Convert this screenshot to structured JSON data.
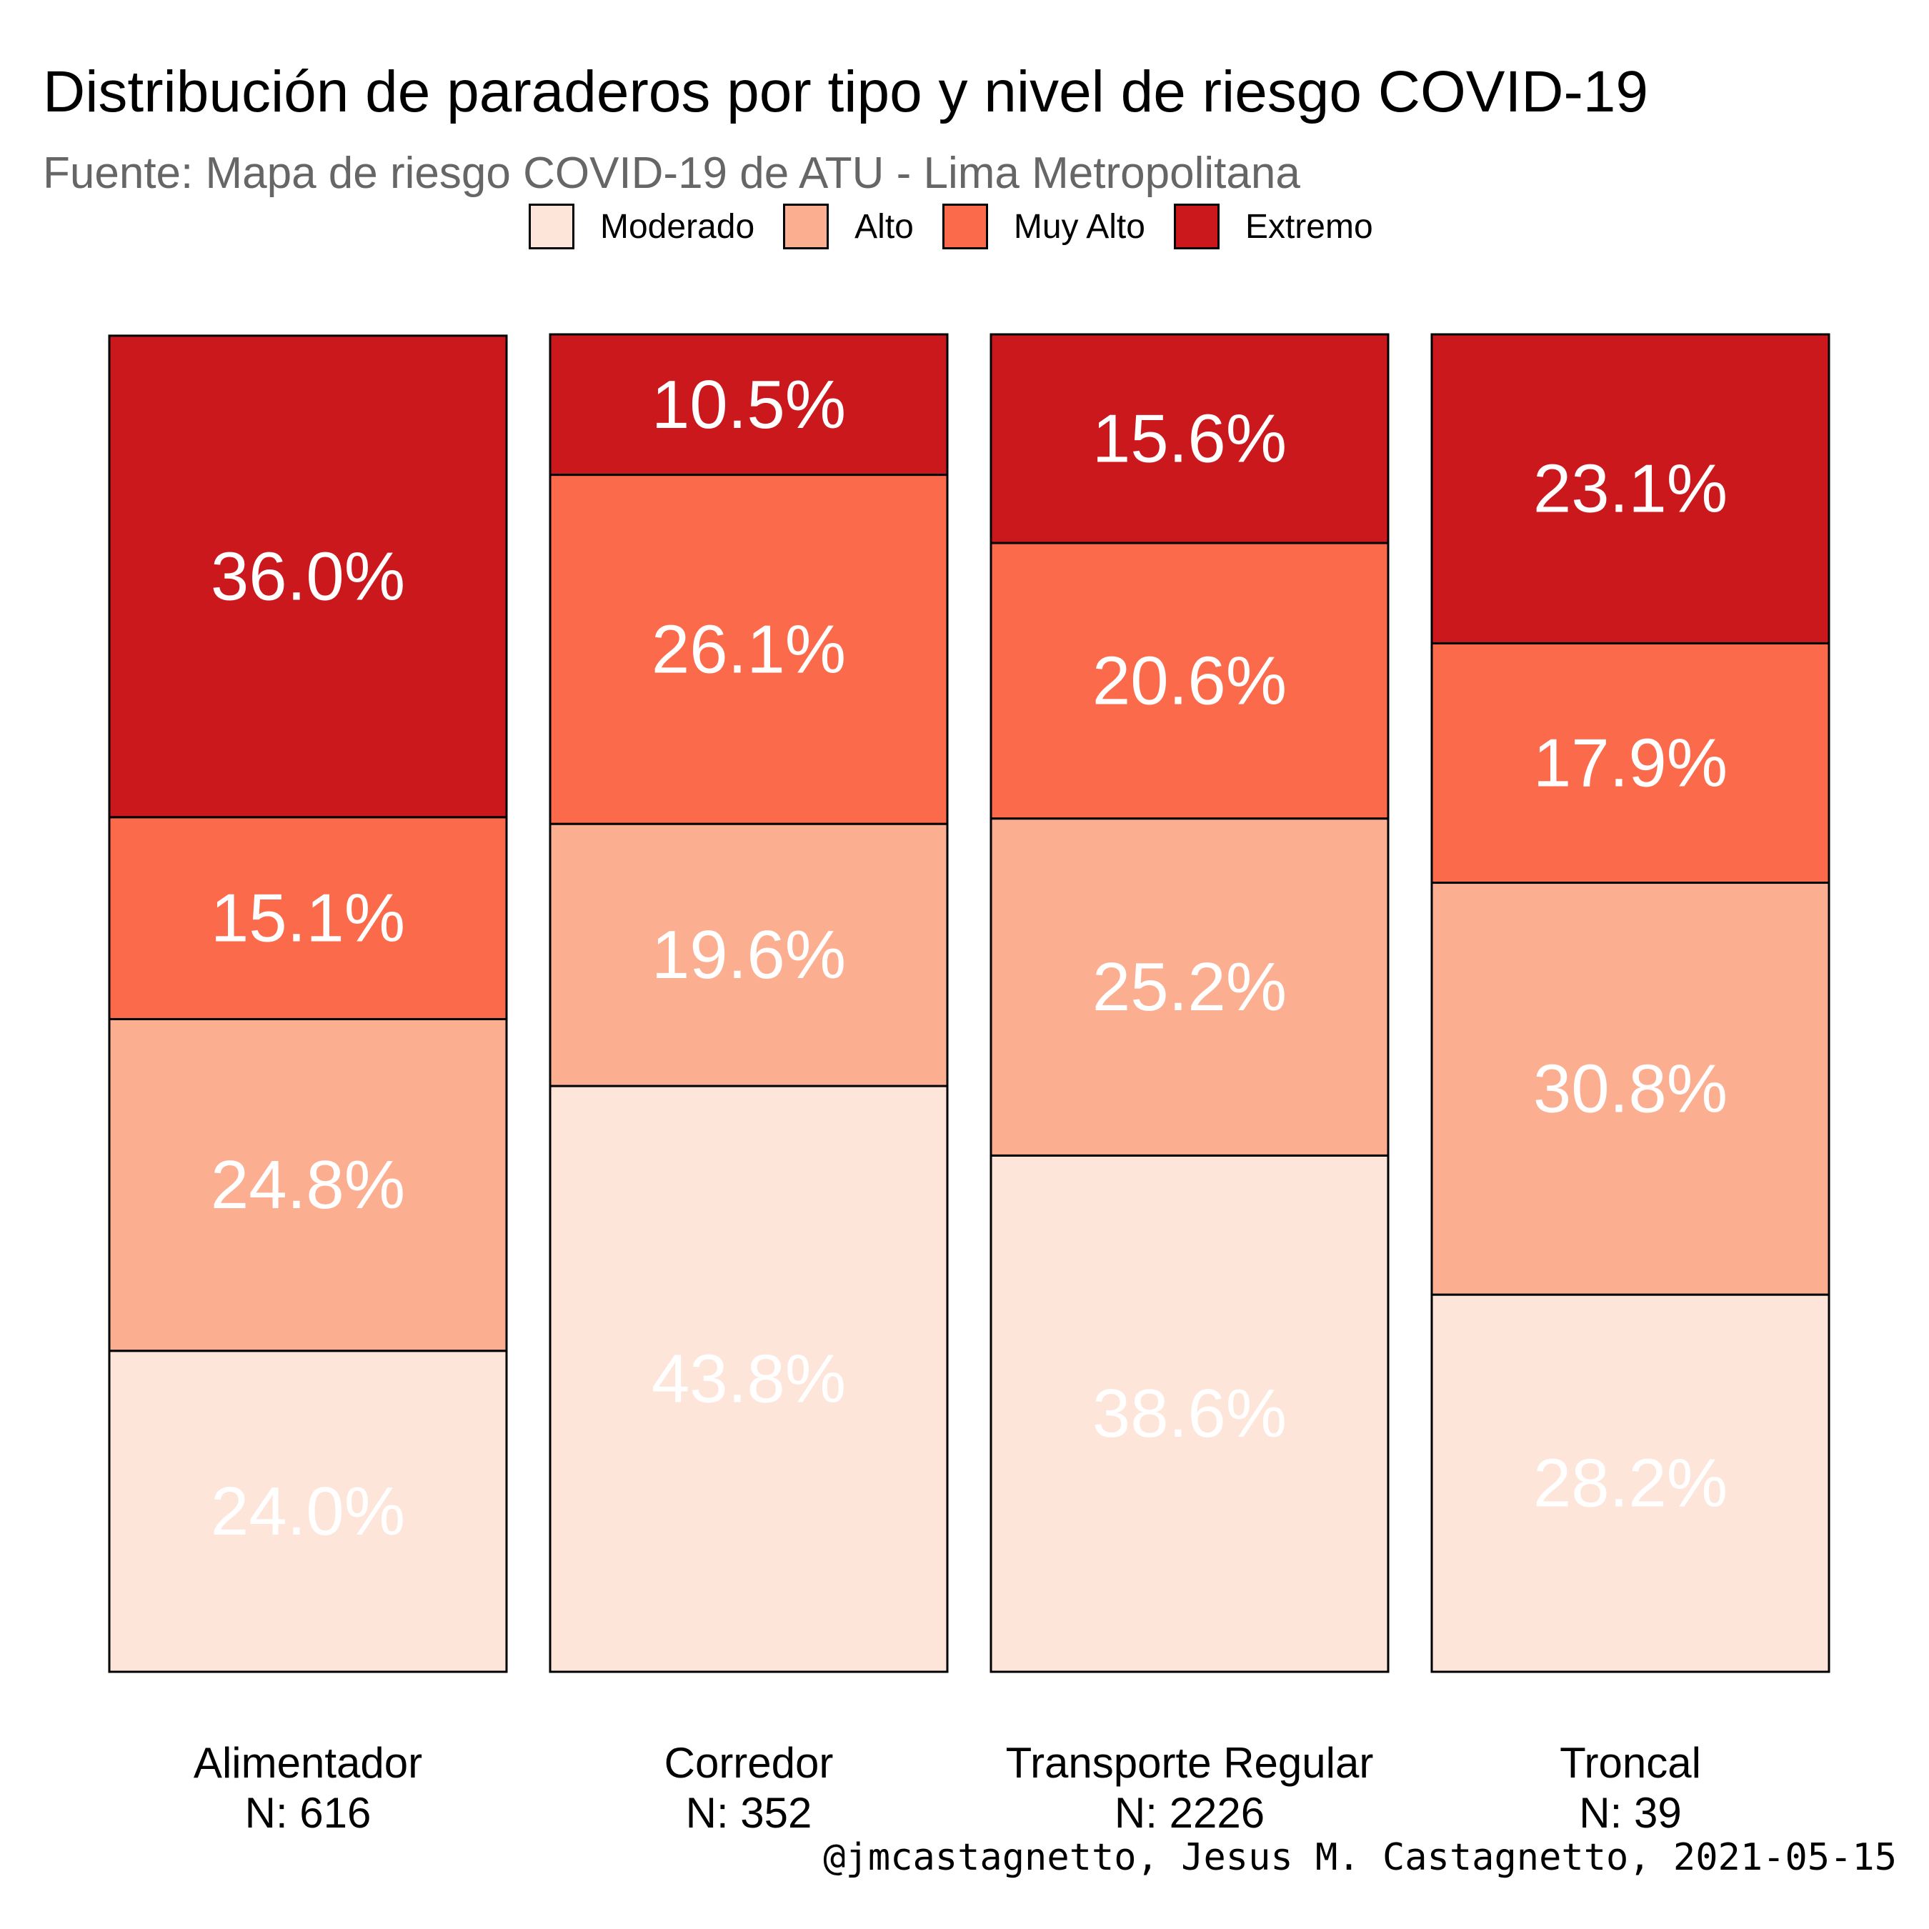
{
  "title": "Distribución de paraderos por tipo y nivel de riesgo COVID-19",
  "subtitle": "Fuente: Mapa de riesgo COVID-19 de ATU - Lima Metropolitana",
  "caption": "@jmcastagnetto, Jesus M. Castagnetto, 2021-05-15",
  "legend": [
    {
      "label": "Moderado",
      "color": "#FEE5D9"
    },
    {
      "label": "Alto",
      "color": "#FCAE91"
    },
    {
      "label": "Muy Alto",
      "color": "#FB6A4A"
    },
    {
      "label": "Extremo",
      "color": "#CB181D"
    }
  ],
  "chart_data": {
    "type": "bar",
    "stacked": true,
    "normalized_to": 100,
    "categories": [
      "Alimentador",
      "Corredor",
      "Transporte Regular",
      "Troncal"
    ],
    "category_counts": [
      "N: 616",
      "N: 352",
      "N: 2226",
      "N: 39"
    ],
    "series": [
      {
        "name": "Moderado",
        "values": [
          24.0,
          43.8,
          38.6,
          28.2
        ]
      },
      {
        "name": "Alto",
        "values": [
          24.8,
          19.6,
          25.2,
          30.8
        ]
      },
      {
        "name": "Muy Alto",
        "values": [
          15.1,
          26.1,
          20.6,
          17.9
        ]
      },
      {
        "name": "Extremo",
        "values": [
          36.0,
          10.5,
          15.6,
          23.1
        ]
      }
    ],
    "data_labels": [
      [
        "24.0%",
        "24.8%",
        "15.1%",
        "36.0%"
      ],
      [
        "43.8%",
        "19.6%",
        "26.1%",
        "10.5%"
      ],
      [
        "38.6%",
        "25.2%",
        "20.6%",
        "15.6%"
      ],
      [
        "28.2%",
        "30.8%",
        "17.9%",
        "23.1%"
      ]
    ],
    "ylim": [
      0,
      100
    ],
    "grid": false,
    "legend_position": "top"
  }
}
